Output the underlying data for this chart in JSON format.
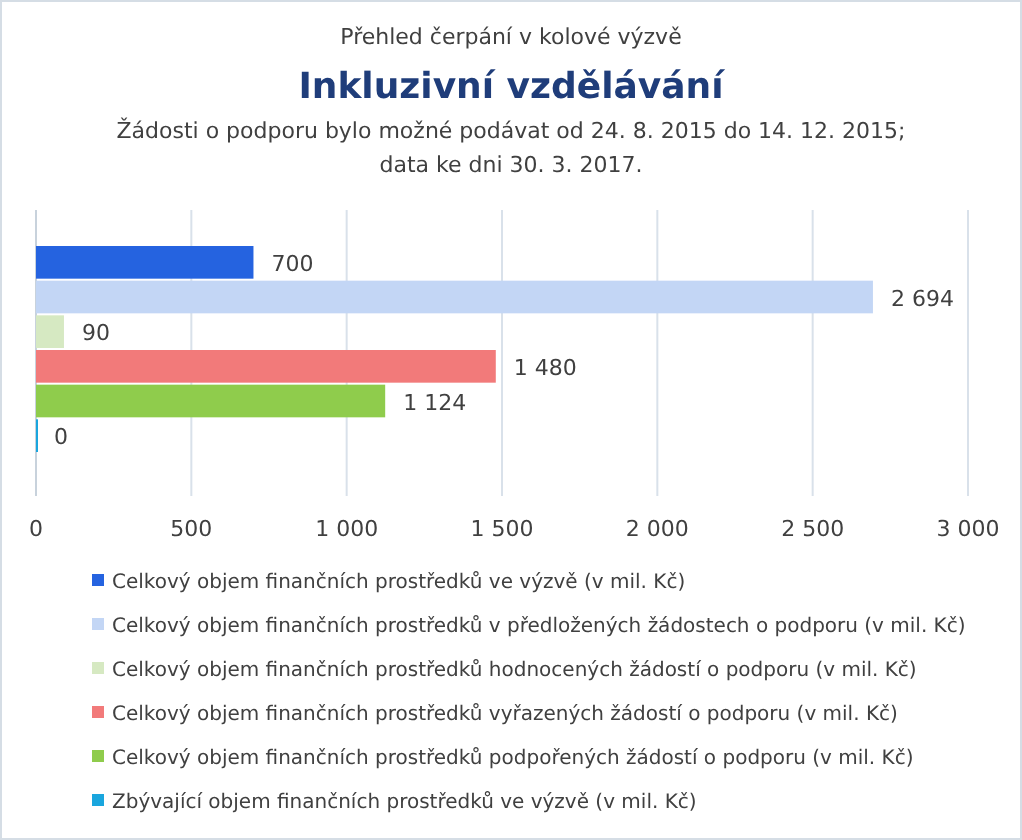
{
  "chart_data": {
    "type": "bar",
    "orientation": "horizontal",
    "title": "Inkluzivní vzdělávání",
    "subtitle": "Žádosti o podporu bylo možné  podávat od 24. 8. 2015 do 14. 12. 2015;\ndata ke dni 30. 3. 2017.",
    "annotations": [
      "Přehled čerpání v kolové výzvě"
    ],
    "categories": [
      null
    ],
    "series": [
      {
        "name": "Celkový objem finančních prostředků ve výzvě (v mil. Kč)",
        "color": "#2563e0",
        "values": [
          700
        ],
        "value_labels": [
          "700"
        ]
      },
      {
        "name": "Celkový objem finančních prostředků v předložených žádostech o podporu (v mil. Kč)",
        "color": "#c3d6f5",
        "values": [
          2694
        ],
        "value_labels": [
          "2 694"
        ]
      },
      {
        "name": "Celkový objem finančních prostředků hodnocených žádostí o podporu (v mil. Kč)",
        "color": "#d6e9c2",
        "values": [
          90
        ],
        "value_labels": [
          "90"
        ]
      },
      {
        "name": "Celkový objem finančních prostředků vyřazených žádostí o podporu (v mil. Kč)",
        "color": "#f27a7a",
        "values": [
          1480
        ],
        "value_labels": [
          "1 480"
        ]
      },
      {
        "name": "Celkový objem finančních prostředků podpořených žádostí o podporu (v mil. Kč)",
        "color": "#8fcc4c",
        "values": [
          1124
        ],
        "value_labels": [
          "1 124"
        ]
      },
      {
        "name": "Zbývající objem finančních prostředků ve výzvě (v mil. Kč)",
        "color": "#1aa6de",
        "values": [
          0
        ],
        "value_labels": [
          "0"
        ]
      }
    ],
    "xlim": [
      0,
      3000
    ],
    "xticks": [
      0,
      500,
      {
        "value": 1000,
        "label": "1 000"
      },
      {
        "value": 1500,
        "label": "1 500"
      },
      {
        "value": 2000,
        "label": "2 000"
      },
      {
        "value": 2500,
        "label": "2 500"
      },
      {
        "value": 3000,
        "label": "3 000"
      }
    ],
    "grid": "x",
    "legend": "bottom"
  }
}
